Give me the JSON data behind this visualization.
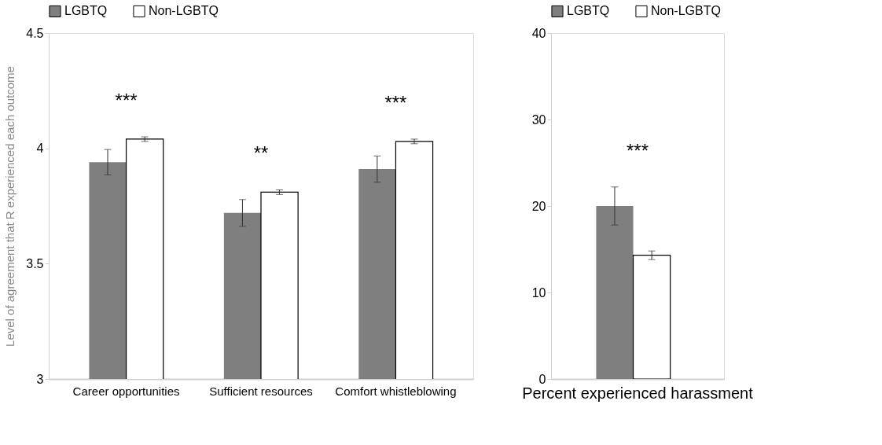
{
  "chart_data": [
    {
      "type": "bar",
      "categories": [
        "Career opportunities",
        "Sufficient resources",
        "Comfort whistleblowing"
      ],
      "ylabel": "Level of agreement that R experienced each outcome",
      "ylim": [
        3,
        4.5
      ],
      "yticks": [
        3,
        3.5,
        4,
        4.5
      ],
      "legend": "top",
      "series": [
        {
          "name": "LGBTQ",
          "color": "#7f7f7f",
          "values": [
            3.94,
            3.72,
            3.91
          ],
          "errors": [
            0.055,
            0.058,
            0.057
          ]
        },
        {
          "name": "Non-LGBTQ",
          "color": "#ffffff",
          "values": [
            4.04,
            3.81,
            4.03
          ],
          "errors": [
            0.01,
            0.01,
            0.01
          ]
        }
      ],
      "annotations": [
        "***",
        "**",
        "***"
      ]
    },
    {
      "type": "bar",
      "categories": [
        "Percent experienced harassment"
      ],
      "ylim": [
        0,
        40
      ],
      "yticks": [
        0,
        10,
        20,
        30,
        40
      ],
      "legend": "top",
      "series": [
        {
          "name": "LGBTQ",
          "color": "#7f7f7f",
          "values": [
            20.0
          ],
          "errors": [
            2.2
          ]
        },
        {
          "name": "Non-LGBTQ",
          "color": "#ffffff",
          "values": [
            14.3
          ],
          "errors": [
            0.5
          ]
        }
      ],
      "annotations": [
        "***"
      ]
    }
  ]
}
